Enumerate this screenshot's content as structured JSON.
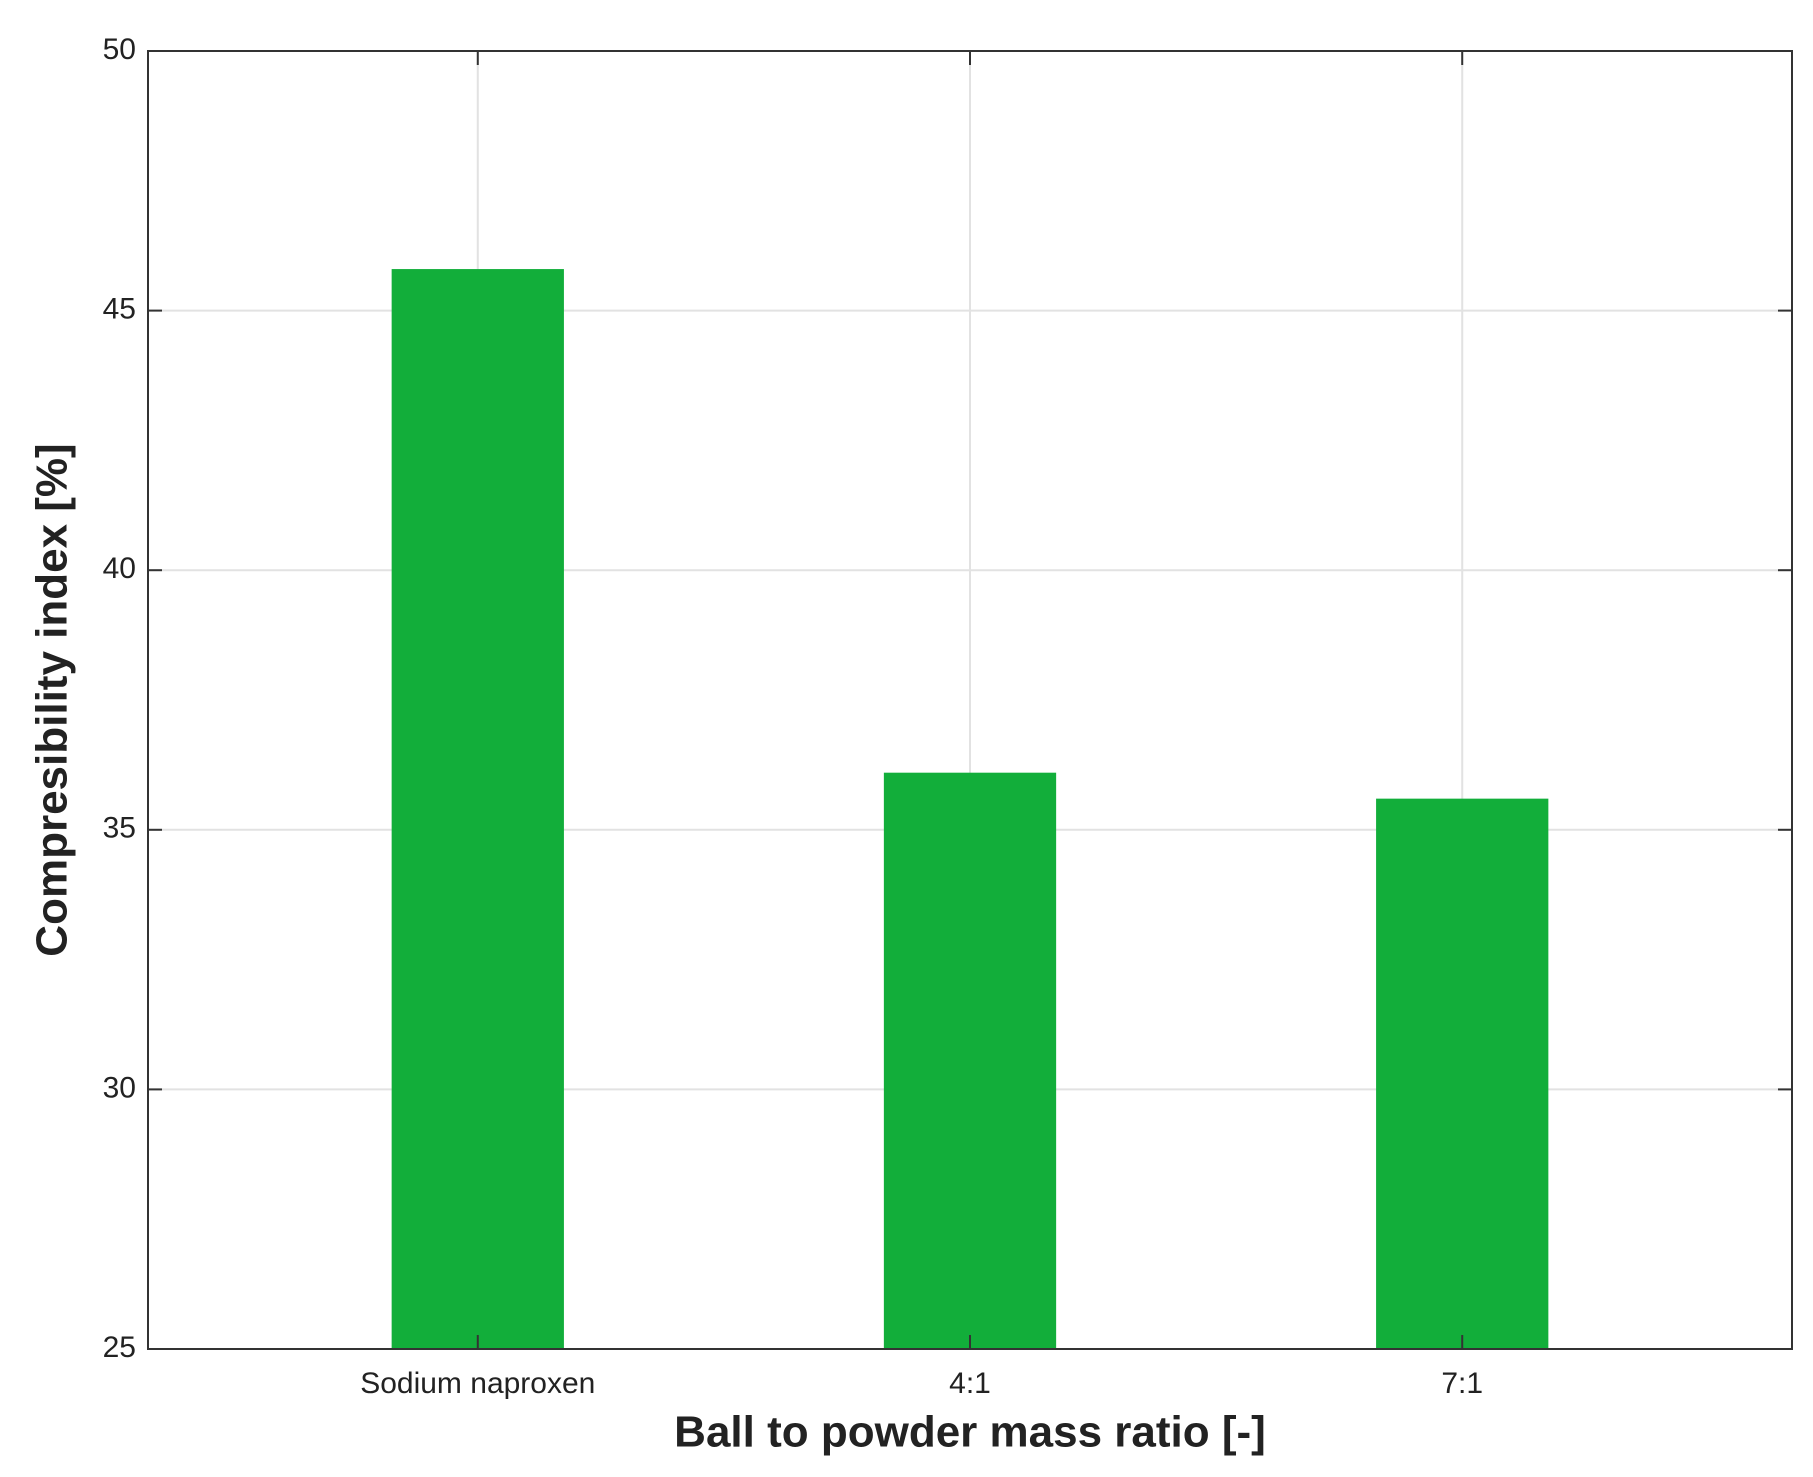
{
  "chart_data": {
    "type": "bar",
    "x_label": "Ball to powder mass ratio [-]",
    "y_label": "Compresibility index [%]",
    "categories": [
      "Sodium naproxen",
      "4:1",
      "7:1"
    ],
    "values": [
      45.8,
      36.1,
      35.6
    ],
    "color": "#12ae3a",
    "ylim": [
      25,
      50
    ],
    "yticks": [
      25,
      30,
      35,
      40,
      45,
      50
    ],
    "grid": true
  }
}
